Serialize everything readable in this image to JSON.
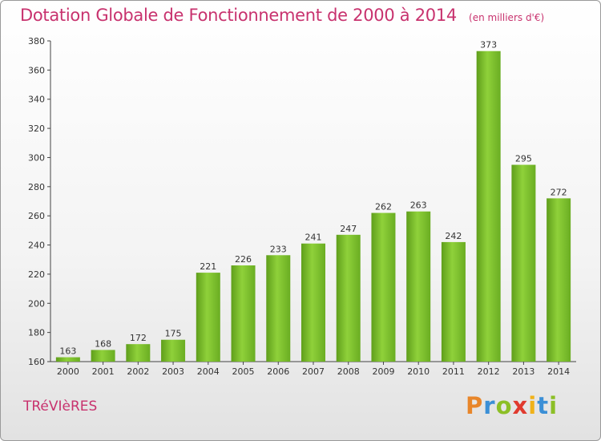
{
  "chart_data": {
    "type": "bar",
    "title": "Dotation Globale de Fonctionnement de 2000 à 2014",
    "subtitle": "(en milliers d'€)",
    "categories": [
      "2000",
      "2001",
      "2002",
      "2003",
      "2004",
      "2005",
      "2006",
      "2007",
      "2008",
      "2009",
      "2010",
      "2011",
      "2012",
      "2013",
      "2014"
    ],
    "values": [
      163,
      168,
      172,
      175,
      221,
      226,
      233,
      241,
      247,
      262,
      263,
      242,
      373,
      295,
      272
    ],
    "ylim": [
      160,
      380
    ],
    "yticks": [
      160,
      180,
      200,
      220,
      240,
      260,
      280,
      300,
      320,
      340,
      360,
      380
    ],
    "grid": false,
    "bar_color": "#7cbf2c"
  },
  "footer": {
    "commune": "TRéVIèRES",
    "logo_letters": [
      "P",
      "r",
      "o",
      "x",
      "i",
      "t",
      "i"
    ],
    "logo_colors": [
      "#e8862a",
      "#3b8fd6",
      "#8cbf26",
      "#e03a2e",
      "#f0b21a",
      "#3b8fd6",
      "#8cbf26"
    ]
  }
}
